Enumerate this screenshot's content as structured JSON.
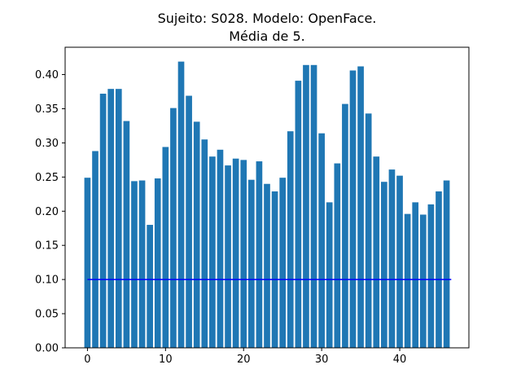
{
  "chart_data": {
    "type": "bar",
    "title_lines": [
      "Sujeito: S028. Modelo: OpenFace.",
      "Média de 5."
    ],
    "xlabel": "",
    "ylabel": "",
    "x": [
      0,
      1,
      2,
      3,
      4,
      5,
      6,
      7,
      8,
      9,
      10,
      11,
      12,
      13,
      14,
      15,
      16,
      17,
      18,
      19,
      20,
      21,
      22,
      23,
      24,
      25,
      26,
      27,
      28,
      29,
      30,
      31,
      32,
      33,
      34,
      35,
      36,
      37,
      38,
      39,
      40,
      41,
      42,
      43,
      44,
      45,
      46
    ],
    "values": [
      0.249,
      0.288,
      0.372,
      0.379,
      0.379,
      0.332,
      0.244,
      0.245,
      0.18,
      0.248,
      0.294,
      0.351,
      0.419,
      0.369,
      0.331,
      0.305,
      0.28,
      0.29,
      0.267,
      0.277,
      0.275,
      0.246,
      0.273,
      0.24,
      0.229,
      0.249,
      0.317,
      0.391,
      0.414,
      0.414,
      0.314,
      0.213,
      0.27,
      0.357,
      0.406,
      0.412,
      0.343,
      0.28,
      0.243,
      0.261,
      0.252,
      0.196,
      0.213,
      0.195,
      0.21,
      0.229,
      0.245
    ],
    "bar_color": "#1f77b4",
    "reference_line": {
      "y": 0.1,
      "x_range": [
        0,
        46.6
      ],
      "color": "#0000ff"
    },
    "xlim": [
      -2.86,
      48.86
    ],
    "ylim": [
      0,
      0.44
    ],
    "xticks": [
      0,
      10,
      20,
      30,
      40
    ],
    "xtick_labels": [
      "0",
      "10",
      "20",
      "30",
      "40"
    ],
    "yticks": [
      0.0,
      0.05,
      0.1,
      0.15,
      0.2,
      0.25,
      0.3,
      0.35,
      0.4
    ],
    "ytick_labels": [
      "0.00",
      "0.05",
      "0.10",
      "0.15",
      "0.20",
      "0.25",
      "0.30",
      "0.35",
      "0.40"
    ],
    "grid": false,
    "legend": "none"
  }
}
